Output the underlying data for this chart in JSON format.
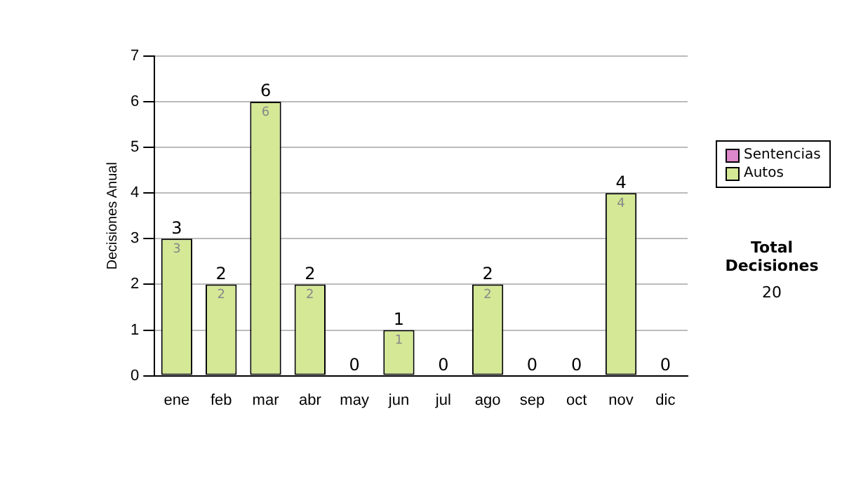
{
  "chart_data": {
    "type": "bar",
    "ylabel": "Decisiones Anual",
    "categories": [
      "ene",
      "feb",
      "mar",
      "abr",
      "may",
      "jun",
      "jul",
      "ago",
      "sep",
      "oct",
      "nov",
      "dic"
    ],
    "stacked": true,
    "series": [
      {
        "name": "Sentencias",
        "color": "#dd88cc",
        "values": [
          0,
          0,
          0,
          0,
          0,
          0,
          0,
          0,
          0,
          0,
          0,
          0
        ]
      },
      {
        "name": "Autos",
        "color": "#d4e896",
        "values": [
          3,
          2,
          6,
          2,
          0,
          1,
          0,
          2,
          0,
          0,
          4,
          0
        ],
        "value_labels": [
          "3",
          "2",
          "6",
          "2",
          null,
          "1",
          null,
          "2",
          null,
          null,
          "4",
          null
        ]
      }
    ],
    "totals": [
      "3",
      "2",
      "6",
      "2",
      "0",
      "1",
      "0",
      "2",
      "0",
      "0",
      "4",
      "0"
    ],
    "ylim": [
      0,
      7
    ],
    "yticks": [
      0,
      1,
      2,
      3,
      4,
      5,
      6,
      7
    ],
    "grid": "y",
    "legend": "right",
    "annotations": [
      "Total Decisiones",
      "20"
    ]
  }
}
